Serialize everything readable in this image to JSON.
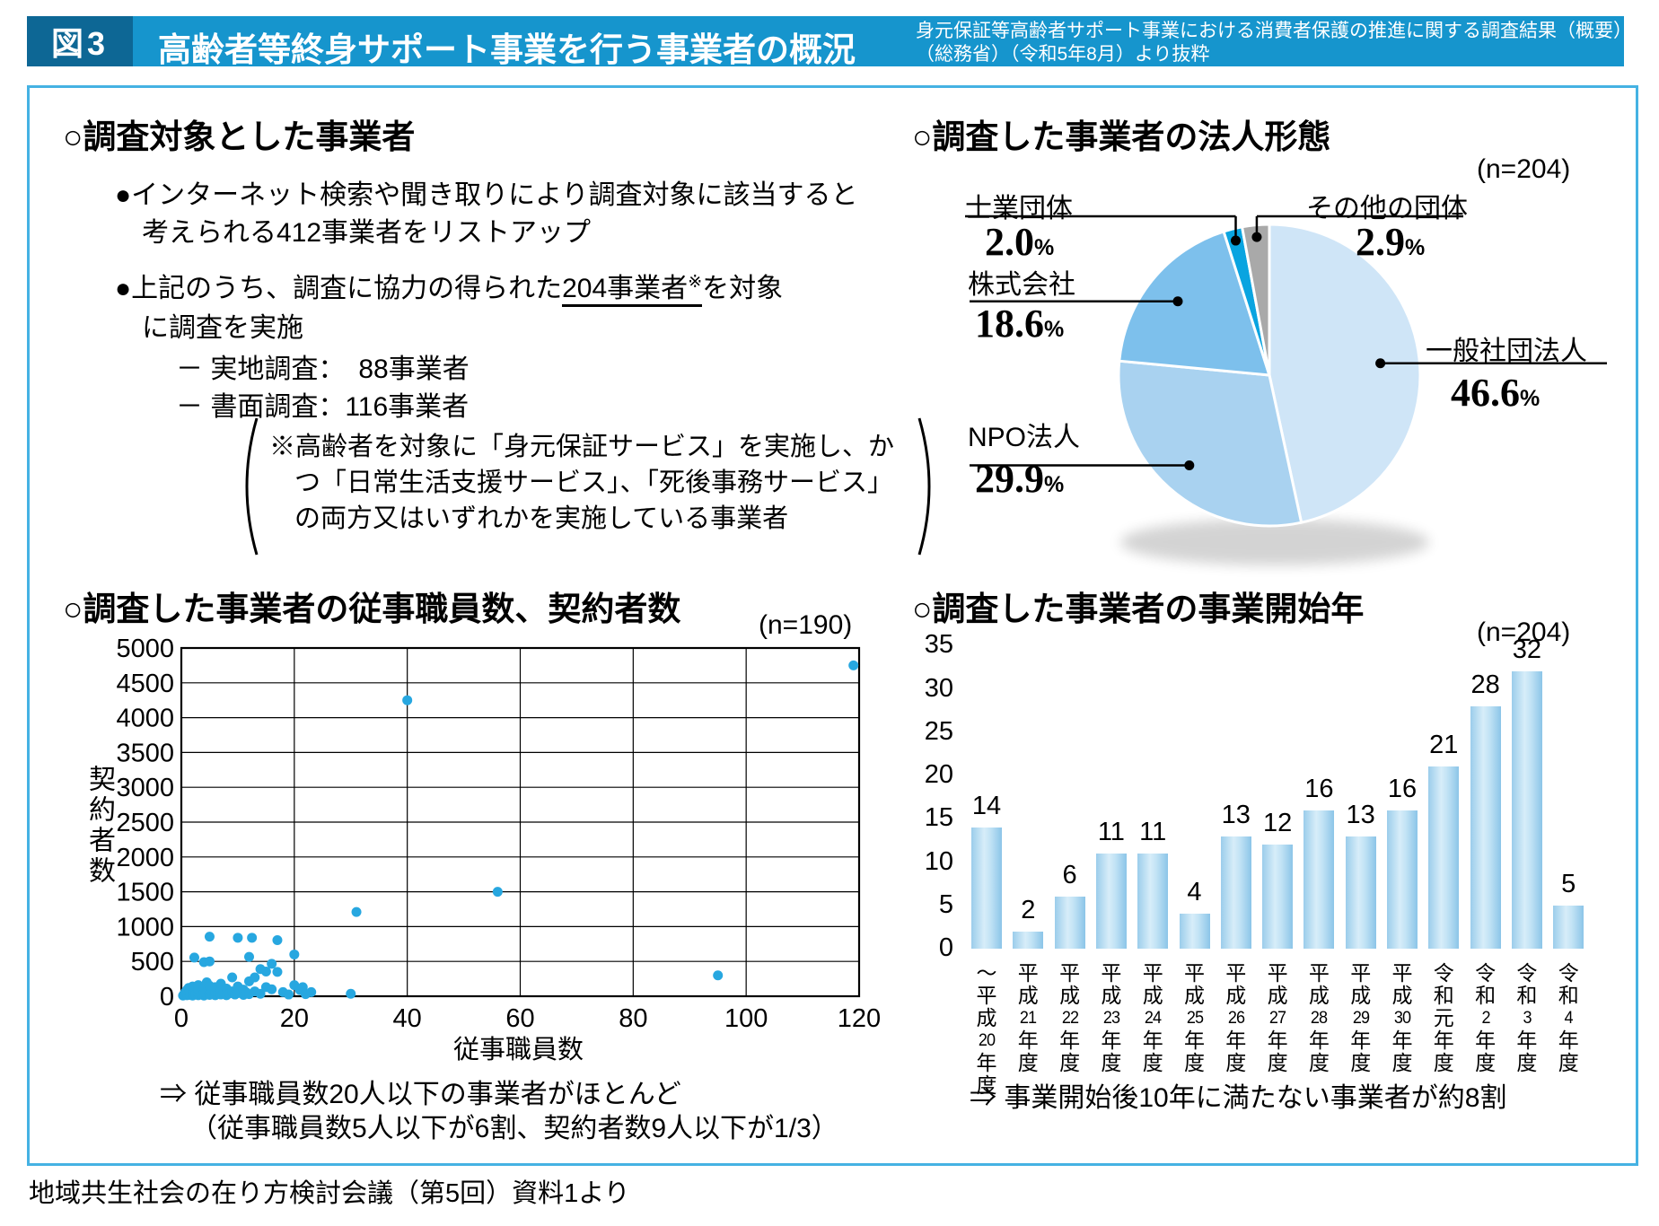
{
  "header": {
    "fig_label": "図3",
    "title": "高齢者等終身サポート事業を行う事業者の概況",
    "source_line1": "身元保証等高齢者サポート事業における消費者保護の推進に関する調査結果（概要）",
    "source_line2": "（総務省）（令和5年8月）より抜粋"
  },
  "colors": {
    "fig_box": "#0d6795",
    "title_bar": "#1695cd",
    "frame_border": "#45b2e3",
    "scatter_point": "#27a7e0",
    "bar_fill_edge": "#9bcdeb",
    "bar_fill_center": "#d7edf9",
    "pie_general": "#cfe5f7",
    "pie_npo": "#a9d2f0",
    "pie_kk": "#7dc0ec",
    "pie_shigyo": "#09a4e0",
    "pie_other": "#a9a9a9"
  },
  "survey_target": {
    "heading": "○調査対象とした事業者",
    "bullet1_line1": "●インターネット検索や聞き取りにより調査対象に該当すると",
    "bullet1_line2": "考えられる412事業者をリストアップ",
    "bullet2_prefix": "●上記のうち、調査に協力の得られた",
    "bullet2_underlined": "204事業者",
    "bullet2_sup": "※",
    "bullet2_suffix": "を対象",
    "bullet2_line2": "に調査を実施",
    "item_field": "－ 実地調査：　88事業者",
    "item_paper": "－ 書面調査：116事業者",
    "note_line1": "※高齢者を対象に「身元保証サービス」を実施し、か",
    "note_line2": "つ「日常生活支援サービス」、「死後事務サービス」",
    "note_line3": "の両方又はいずれかを実施している事業者"
  },
  "legal_form": {
    "heading": "○調査した事業者の法人形態",
    "n_label": "(n=204)",
    "percent_sign": "%"
  },
  "staff_chart": {
    "heading": "○調査した事業者の従事職員数、契約者数",
    "n_label": "(n=190)",
    "annot_line1": "⇒ 従事職員数20人以下の事業者がほとんど",
    "annot_line2": "（従事職員数5人以下が6割、契約者数9人以下が1/3）"
  },
  "start_year_chart": {
    "heading": "○調査した事業者の事業開始年",
    "n_label": "(n=204)",
    "annot": "⇒ 事業開始後10年に満たない事業者が約8割"
  },
  "footer": "地域共生社会の在り方検討会議（第5回）資料1より",
  "chart_data": [
    {
      "type": "pie",
      "title": "調査した事業者の法人形態",
      "n": 204,
      "legend_position": "callout-labels",
      "segments": [
        {
          "label": "一般社団法人",
          "pct": "46.6",
          "value": 46.6,
          "color": "#cfe5f7"
        },
        {
          "label": "NPO法人",
          "pct": "29.9",
          "value": 29.9,
          "color": "#a9d2f0"
        },
        {
          "label": "株式会社",
          "pct": "18.6",
          "value": 18.6,
          "color": "#7dc0ec"
        },
        {
          "label": "士業団体",
          "pct": "2.0",
          "value": 2.0,
          "color": "#09a4e0"
        },
        {
          "label": "その他の団体",
          "pct": "2.9",
          "value": 2.9,
          "color": "#a9a9a9"
        }
      ]
    },
    {
      "type": "scatter",
      "title": "調査した事業者の従事職員数、契約者数",
      "n": 190,
      "xlabel": "従事職員数",
      "ylabel": "契約者数",
      "xlim": [
        0,
        120
      ],
      "xstep": 20,
      "ylim": [
        0,
        5000
      ],
      "ystep": 500,
      "grid": true,
      "points": [
        [
          0.3,
          10
        ],
        [
          0.5,
          30
        ],
        [
          0.7,
          60
        ],
        [
          1,
          15
        ],
        [
          1,
          45
        ],
        [
          1,
          90
        ],
        [
          1.3,
          120
        ],
        [
          1.5,
          20
        ],
        [
          1.5,
          60
        ],
        [
          2,
          10
        ],
        [
          2,
          35
        ],
        [
          2,
          80
        ],
        [
          2,
          140
        ],
        [
          2.3,
          555
        ],
        [
          2.5,
          25
        ],
        [
          3,
          15
        ],
        [
          3,
          50
        ],
        [
          3,
          100
        ],
        [
          3,
          160
        ],
        [
          3.5,
          30
        ],
        [
          4,
          10
        ],
        [
          4,
          60
        ],
        [
          4,
          120
        ],
        [
          4,
          490
        ],
        [
          4.5,
          200
        ],
        [
          5,
          20
        ],
        [
          5,
          45
        ],
        [
          5,
          90
        ],
        [
          5,
          150
        ],
        [
          5,
          500
        ],
        [
          5,
          855
        ],
        [
          6,
          15
        ],
        [
          6,
          70
        ],
        [
          6,
          130
        ],
        [
          6.5,
          35
        ],
        [
          7,
          25
        ],
        [
          7,
          90
        ],
        [
          7,
          180
        ],
        [
          7.5,
          55
        ],
        [
          8,
          15
        ],
        [
          8,
          110
        ],
        [
          8.5,
          40
        ],
        [
          9,
          70
        ],
        [
          9,
          270
        ],
        [
          9.5,
          25
        ],
        [
          10,
          45
        ],
        [
          10,
          140
        ],
        [
          10,
          840
        ],
        [
          11,
          20
        ],
        [
          11,
          95
        ],
        [
          11.5,
          55
        ],
        [
          12,
          30
        ],
        [
          12,
          215
        ],
        [
          12,
          565
        ],
        [
          12.5,
          840
        ],
        [
          13,
          70
        ],
        [
          13,
          270
        ],
        [
          14,
          35
        ],
        [
          14,
          390
        ],
        [
          15,
          130
        ],
        [
          15,
          355
        ],
        [
          16,
          100
        ],
        [
          16,
          465
        ],
        [
          17,
          350
        ],
        [
          17,
          805
        ],
        [
          18,
          60
        ],
        [
          19,
          25
        ],
        [
          20,
          160
        ],
        [
          20,
          600
        ],
        [
          21,
          90
        ],
        [
          21.5,
          130
        ],
        [
          22,
          30
        ],
        [
          23,
          60
        ],
        [
          30,
          35
        ],
        [
          31,
          1210
        ],
        [
          40,
          4250
        ],
        [
          56,
          1500
        ],
        [
          95,
          300
        ],
        [
          119,
          4750
        ]
      ]
    },
    {
      "type": "bar",
      "title": "調査した事業者の事業開始年",
      "n": 204,
      "categories": [
        "〜平成20年度",
        "平成21年度",
        "平成22年度",
        "平成23年度",
        "平成24年度",
        "平成25年度",
        "平成26年度",
        "平成27年度",
        "平成28年度",
        "平成29年度",
        "平成30年度",
        "令和元年度",
        "令和2年度",
        "令和3年度",
        "令和4年度"
      ],
      "values": [
        14,
        2,
        6,
        11,
        11,
        4,
        13,
        12,
        16,
        13,
        16,
        21,
        28,
        32,
        5
      ],
      "ylim": [
        0,
        35
      ],
      "ystep": 5,
      "grid": false
    }
  ]
}
